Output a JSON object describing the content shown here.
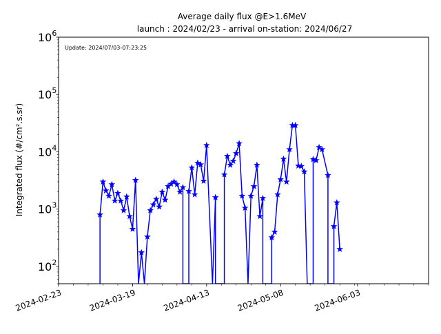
{
  "chart_data": {
    "type": "line",
    "title": [
      "Average daily flux @E>1.6MeV",
      "launch : 2024/02/23 - arrival on-station: 2024/06/27"
    ],
    "xlabel": "",
    "ylabel": "Integrated flux (#/cm².s.sr)",
    "annotation": "Update: 2024/07/03-07:23:25",
    "scale": {
      "y": "log"
    },
    "xlim": [
      "2024-02-23",
      "2024-06-27"
    ],
    "ylim": [
      50,
      1000000
    ],
    "x_ticks": [
      "2024-02-23",
      "2024-03-19",
      "2024-04-13",
      "2024-05-08",
      "2024-06-03"
    ],
    "y_ticks": [
      {
        "value": 100,
        "base": "10",
        "exp": "2"
      },
      {
        "value": 1000,
        "base": "10",
        "exp": "3"
      },
      {
        "value": 10000,
        "base": "10",
        "exp": "4"
      },
      {
        "value": 100000,
        "base": "10",
        "exp": "5"
      },
      {
        "value": 1000000,
        "base": "10",
        "exp": "6"
      }
    ],
    "grid": false,
    "legend": "none",
    "series": [
      {
        "color": "#0000ff",
        "marker": "star",
        "points": [
          [
            "2024-03-08",
            50
          ],
          [
            "2024-03-08",
            800
          ],
          [
            "2024-03-09",
            3000
          ],
          [
            "2024-03-10",
            2100
          ],
          [
            "2024-03-11",
            1700
          ],
          [
            "2024-03-12",
            2700
          ],
          [
            "2024-03-13",
            1400
          ],
          [
            "2024-03-14",
            1900
          ],
          [
            "2024-03-15",
            1400
          ],
          [
            "2024-03-16",
            950
          ],
          [
            "2024-03-17",
            1650
          ],
          [
            "2024-03-18",
            750
          ],
          [
            "2024-03-19",
            450
          ],
          [
            "2024-03-20",
            3200
          ],
          [
            "2024-03-21",
            50
          ],
          [
            "2024-03-22",
            175
          ],
          [
            "2024-03-23",
            50
          ],
          [
            "2024-03-24",
            330
          ],
          [
            "2024-03-25",
            950
          ],
          [
            "2024-03-26",
            1200
          ],
          [
            "2024-03-27",
            1500
          ],
          [
            "2024-03-28",
            1100
          ],
          [
            "2024-03-29",
            2000
          ],
          [
            "2024-03-30",
            1450
          ],
          [
            "2024-03-31",
            2500
          ],
          [
            "2024-04-01",
            2750
          ],
          [
            "2024-04-02",
            3000
          ],
          [
            "2024-04-03",
            2700
          ],
          [
            "2024-04-04",
            2000
          ],
          [
            "2024-04-05",
            2400
          ],
          [
            "2024-04-05",
            50
          ],
          [
            "2024-04-07",
            50
          ],
          [
            "2024-04-07",
            2050
          ],
          [
            "2024-04-08",
            5300
          ],
          [
            "2024-04-09",
            1800
          ],
          [
            "2024-04-10",
            6400
          ],
          [
            "2024-04-11",
            6000
          ],
          [
            "2024-04-12",
            3100
          ],
          [
            "2024-04-13",
            13000
          ],
          [
            "2024-04-15",
            50
          ],
          [
            "2024-04-16",
            1600
          ],
          [
            "2024-04-16",
            50
          ],
          [
            "2024-04-19",
            50
          ],
          [
            "2024-04-19",
            4000
          ],
          [
            "2024-04-20",
            8400
          ],
          [
            "2024-04-21",
            5900
          ],
          [
            "2024-04-22",
            6900
          ],
          [
            "2024-04-23",
            9400
          ],
          [
            "2024-04-24",
            14000
          ],
          [
            "2024-04-25",
            1700
          ],
          [
            "2024-04-26",
            1050
          ],
          [
            "2024-04-27",
            50
          ],
          [
            "2024-04-28",
            1700
          ],
          [
            "2024-04-29",
            2500
          ],
          [
            "2024-04-30",
            5900
          ],
          [
            "2024-05-01",
            750
          ],
          [
            "2024-05-02",
            1550
          ],
          [
            "2024-05-02",
            50
          ],
          [
            "2024-05-05",
            50
          ],
          [
            "2024-05-05",
            320
          ],
          [
            "2024-05-06",
            400
          ],
          [
            "2024-05-07",
            1800
          ],
          [
            "2024-05-08",
            3300
          ],
          [
            "2024-05-09",
            7500
          ],
          [
            "2024-05-10",
            3000
          ],
          [
            "2024-05-11",
            11000
          ],
          [
            "2024-05-12",
            29000
          ],
          [
            "2024-05-13",
            29000
          ],
          [
            "2024-05-14",
            5700
          ],
          [
            "2024-05-15",
            5600
          ],
          [
            "2024-05-16",
            4500
          ],
          [
            "2024-05-17",
            50
          ],
          [
            "2024-05-19",
            50
          ],
          [
            "2024-05-19",
            7400
          ],
          [
            "2024-05-20",
            7100
          ],
          [
            "2024-05-21",
            12000
          ],
          [
            "2024-05-22",
            11000
          ],
          [
            "2024-05-24",
            3900
          ],
          [
            "2024-05-24",
            50
          ],
          [
            "2024-05-26",
            50
          ],
          [
            "2024-05-26",
            500
          ],
          [
            "2024-05-27",
            1300
          ],
          [
            "2024-05-28",
            200
          ]
        ]
      }
    ]
  }
}
